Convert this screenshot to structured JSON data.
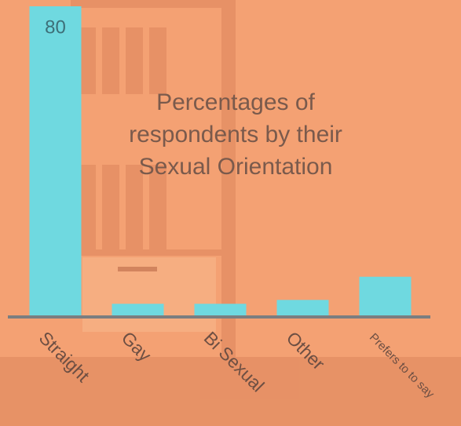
{
  "chart_data": {
    "type": "bar",
    "title": "Percentages of respondents by their Sexual Orientation",
    "categories": [
      "Straight",
      "Gay",
      "Bi Sexual",
      "Other",
      "Prefers to to say"
    ],
    "values": [
      80,
      3,
      3,
      4,
      10
    ],
    "value_labels": [
      "80",
      null,
      null,
      null,
      null
    ],
    "color": "#6fd9e0"
  }
}
